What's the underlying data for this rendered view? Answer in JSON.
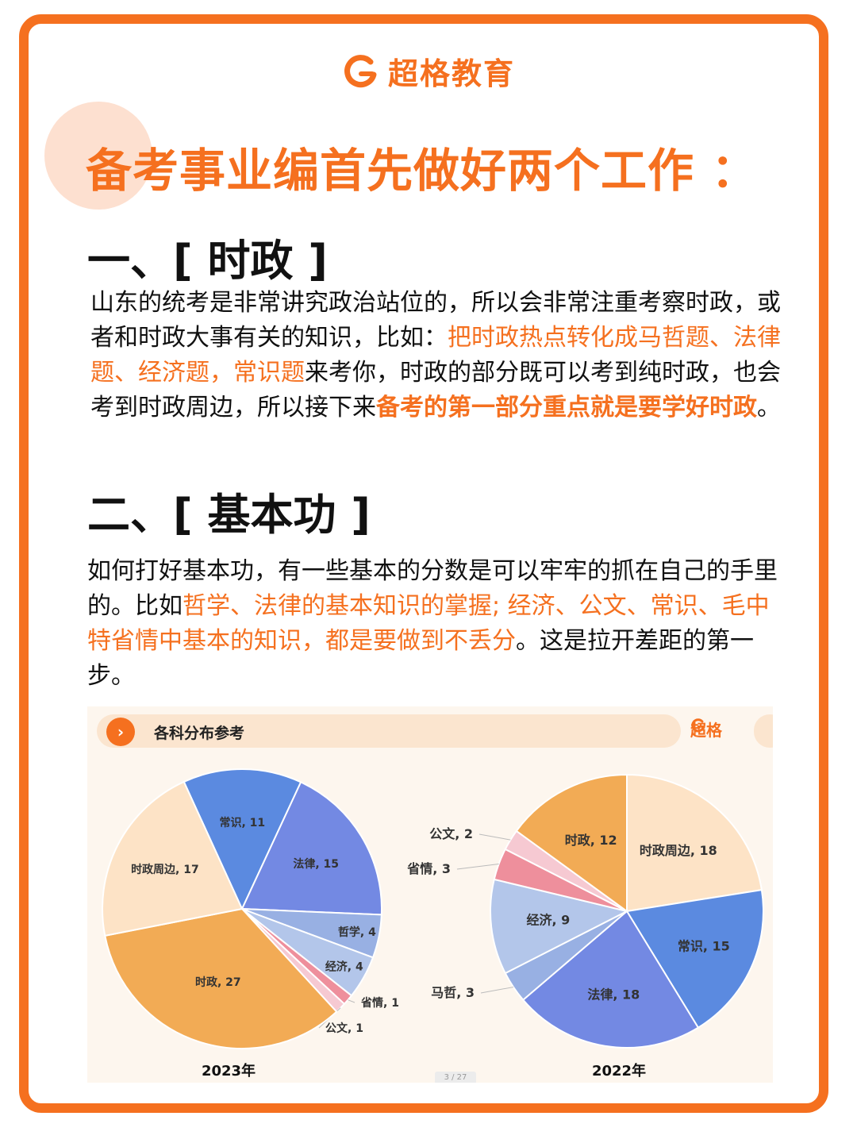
{
  "brand": {
    "name": "超格教育",
    "color": "#f5701f"
  },
  "title": "备考事业编首先做好两个工作 ：",
  "section1": {
    "heading": "一、[ 时政 ]",
    "p_a": "山东的统考是非常讲究政治站位的，所以会非常注重考察时政，或者和时政大事有关的知识，比如：",
    "p_hl1": "把时政热点转化成马哲题、法律题、经济题，常识题",
    "p_b": "来考你，时政的部分既可以考到纯时政，也会考到时政周边，所以接下来",
    "p_hl2": "备考的第一部分重点就是要学好时政",
    "p_c": "。"
  },
  "section2": {
    "heading": "二、[ 基本功 ]",
    "p_a": "如何打好基本功，有一些基本的分数是可以牢牢的抓在自己的手里的。比如",
    "p_hl": "哲学、法律的基本知识的掌握; 经济、公文、常识、毛中特省情中基本的知识，都是要做到不丢分",
    "p_b": "。这是拉开差距的第一步。"
  },
  "chart_banner": {
    "title": "各科分布参考",
    "logo": "超格",
    "arrow": "›"
  },
  "pager": "3 / 27",
  "chart_data": [
    {
      "type": "pie",
      "title": "2023年",
      "slices": [
        {
          "label": "常识, 11",
          "name": "常识",
          "value": 11,
          "color": "#5b8ae0"
        },
        {
          "label": "法律, 15",
          "name": "法律",
          "value": 15,
          "color": "#7389e3"
        },
        {
          "label": "哲学, 4",
          "name": "哲学",
          "value": 4,
          "color": "#98b0e3"
        },
        {
          "label": "经济, 4",
          "name": "经济",
          "value": 4,
          "color": "#b3c6ea"
        },
        {
          "label": "省情, 1",
          "name": "省情",
          "value": 1,
          "color": "#ee8f9c"
        },
        {
          "label": "公文, 1",
          "name": "公文",
          "value": 1,
          "color": "#f6c9d2"
        },
        {
          "label": "时政, 27",
          "name": "时政",
          "value": 27,
          "color": "#f2ab55"
        },
        {
          "label": "时政周边, 17",
          "name": "时政周边",
          "value": 17,
          "color": "#fde3c6"
        }
      ]
    },
    {
      "type": "pie",
      "title": "2022年",
      "slices": [
        {
          "label": "时政周边, 18",
          "name": "时政周边",
          "value": 18,
          "color": "#fde3c6"
        },
        {
          "label": "常识, 15",
          "name": "常识",
          "value": 15,
          "color": "#5b8ae0"
        },
        {
          "label": "法律, 18",
          "name": "法律",
          "value": 18,
          "color": "#7389e3"
        },
        {
          "label": "马哲, 3",
          "name": "马哲",
          "value": 3,
          "color": "#98b0e3"
        },
        {
          "label": "经济, 9",
          "name": "经济",
          "value": 9,
          "color": "#b3c6ea"
        },
        {
          "label": "省情, 3",
          "name": "省情",
          "value": 3,
          "color": "#ee8f9c"
        },
        {
          "label": "公文, 2",
          "name": "公文",
          "value": 2,
          "color": "#f6c9d2"
        },
        {
          "label": "时政, 12",
          "name": "时政",
          "value": 12,
          "color": "#f2ab55"
        }
      ]
    }
  ]
}
